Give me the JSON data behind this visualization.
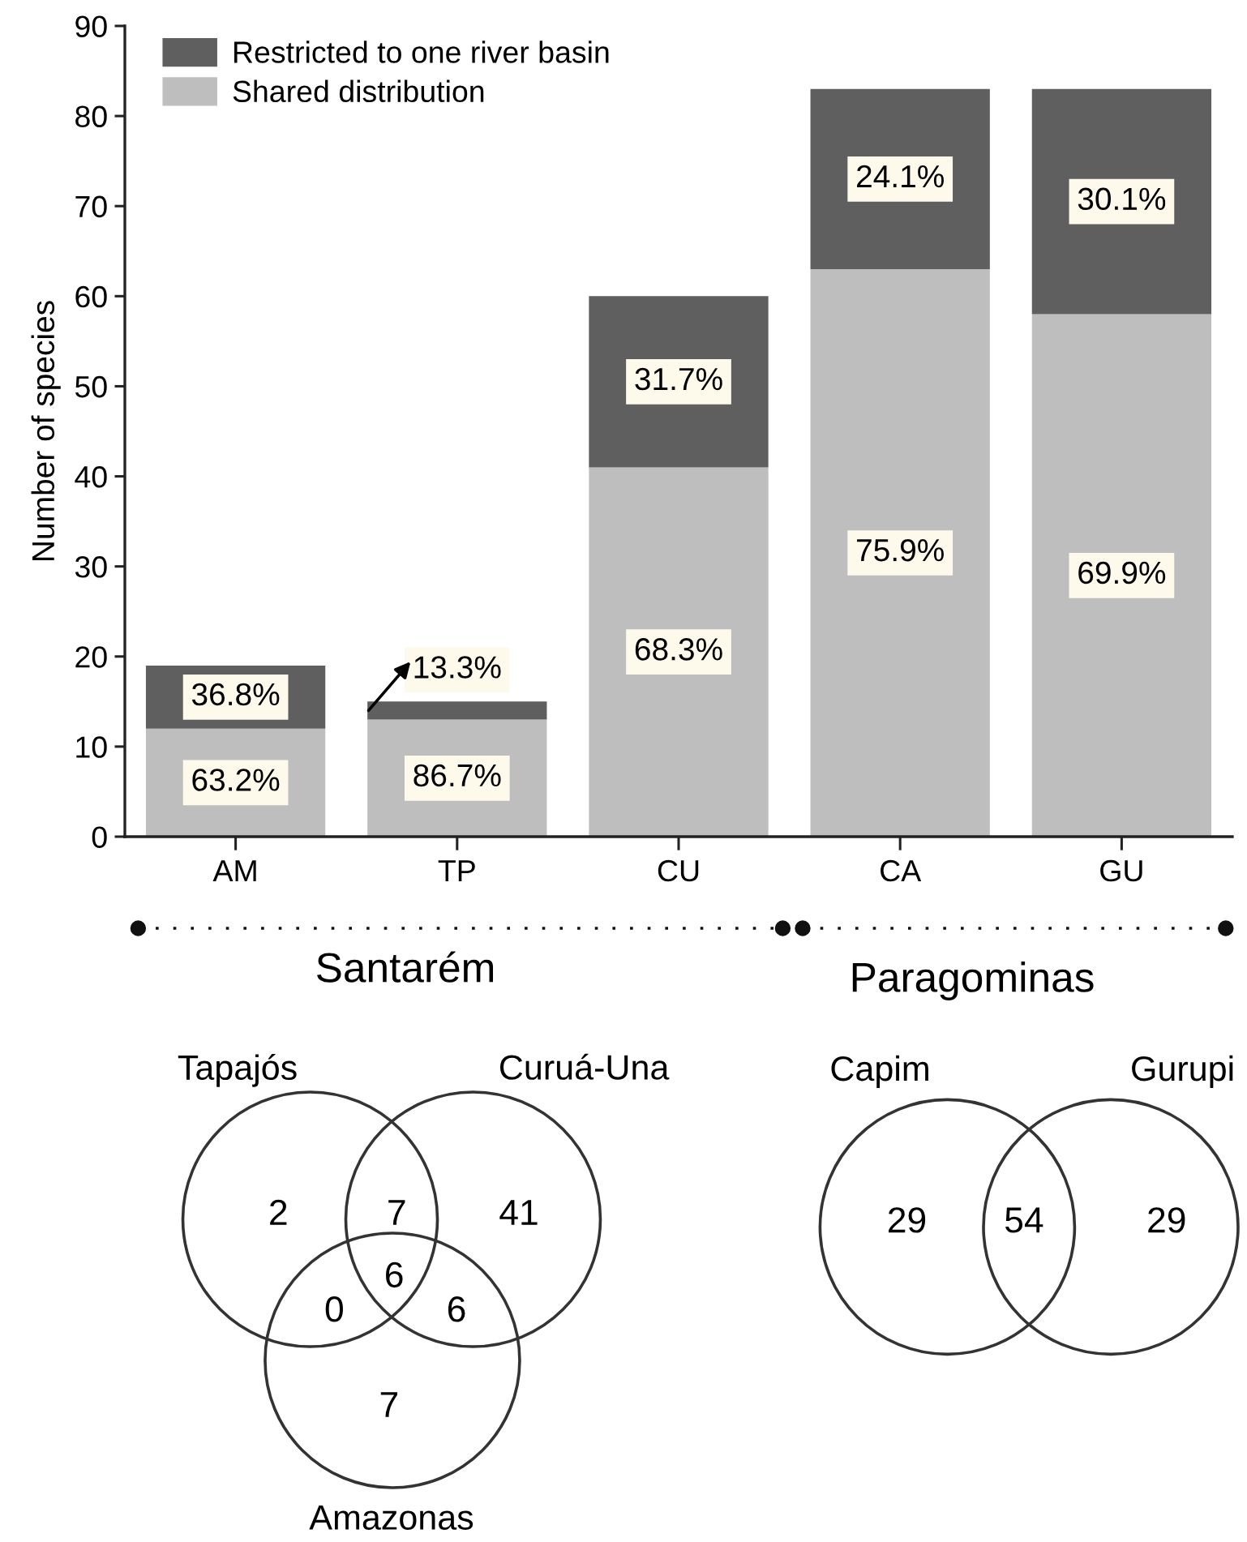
{
  "chart_data": [
    {
      "type": "bar",
      "stacked": true,
      "ylabel": "Number of species",
      "categories": [
        "AM",
        "TP",
        "CU",
        "CA",
        "GU"
      ],
      "series": [
        {
          "name": "Shared distribution",
          "color": "#bebebe",
          "values": [
            12,
            13,
            41,
            63,
            58
          ]
        },
        {
          "name": "Restricted to one river basin",
          "color": "#5f5f5f",
          "values": [
            7,
            2,
            19,
            20,
            25
          ]
        }
      ],
      "ylim": [
        0,
        90
      ],
      "yticks": [
        0,
        10,
        20,
        30,
        40,
        50,
        60,
        70,
        80,
        90
      ],
      "legend": "top left",
      "annotations": [
        "63.2%",
        "36.8%",
        "86.7%",
        "13.3%",
        "68.3%",
        "31.7%",
        "75.9%",
        "24.1%",
        "69.9%",
        "30.1%"
      ]
    },
    {
      "type": "other",
      "title": "Santarém",
      "categories": [
        null,
        null,
        null,
        null,
        null,
        null,
        null
      ],
      "values": [
        2,
        7,
        41,
        6,
        0,
        6,
        7
      ],
      "data_labels": true,
      "annotations": [
        "Tapajós",
        "Curuá-Una",
        "Amazonas"
      ]
    },
    {
      "type": "other",
      "title": "Paragominas",
      "categories": [
        null,
        null,
        null
      ],
      "values": [
        29,
        54,
        29
      ],
      "data_labels": true,
      "annotations": [
        "Capim",
        "Gurupi"
      ]
    }
  ]
}
